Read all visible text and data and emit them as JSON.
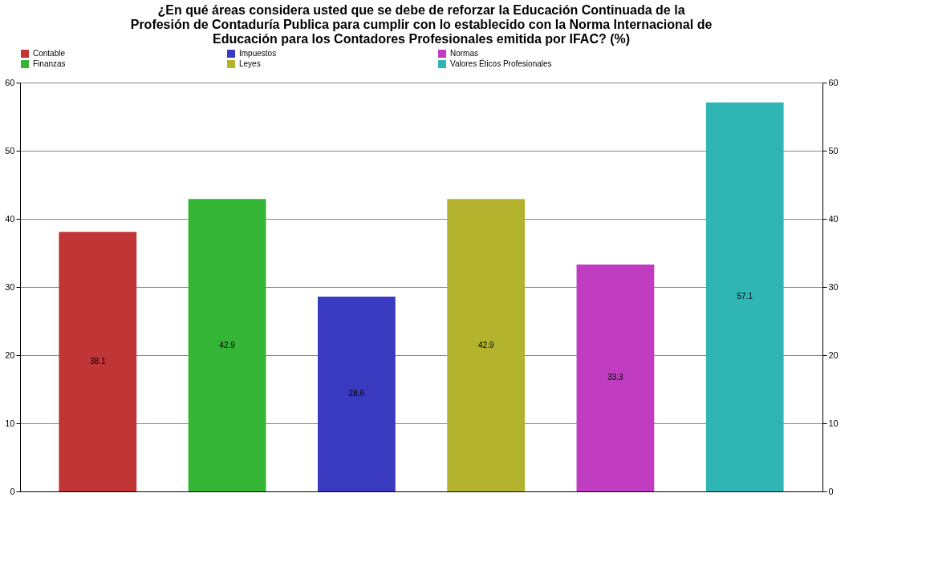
{
  "chart_data": {
    "type": "bar",
    "title": "¿En qué áreas considera usted que se debe de reforzar la Educación Continuada de la\nProfesión de Contaduría Publica para cumplir con lo establecido con la Norma Internacional de\nEducación para los Contadores Profesionales emitida por IFAC? (%)",
    "categories": [
      null,
      null,
      null,
      null,
      null,
      null
    ],
    "series": [
      {
        "name": "Contable",
        "color": "#c03535",
        "values": [
          38.1,
          null,
          null,
          null,
          null,
          null
        ]
      },
      {
        "name": "Finanzas",
        "color": "#35b535",
        "values": [
          null,
          42.9,
          null,
          null,
          null,
          null
        ]
      },
      {
        "name": "Impuestos",
        "color": "#3a3ac0",
        "values": [
          null,
          null,
          28.6,
          null,
          null,
          null
        ]
      },
      {
        "name": "Leyes",
        "color": "#b3b32e",
        "values": [
          null,
          null,
          null,
          42.9,
          null,
          null
        ]
      },
      {
        "name": "Normas",
        "color": "#c03cc0",
        "values": [
          null,
          null,
          null,
          null,
          33.3,
          null
        ]
      },
      {
        "name": "Valores Éticos Profesionales",
        "color": "#30b5b5",
        "values": [
          null,
          null,
          null,
          null,
          null,
          57.1
        ]
      }
    ],
    "ylim": [
      0,
      60
    ],
    "yticks": [
      0,
      10,
      20,
      30,
      40,
      50,
      60
    ],
    "y2lim": [
      0,
      60
    ],
    "y2ticks": [
      0,
      10,
      20,
      30,
      40,
      50,
      60
    ],
    "grid": "y",
    "legend": "top",
    "data_labels": true
  }
}
